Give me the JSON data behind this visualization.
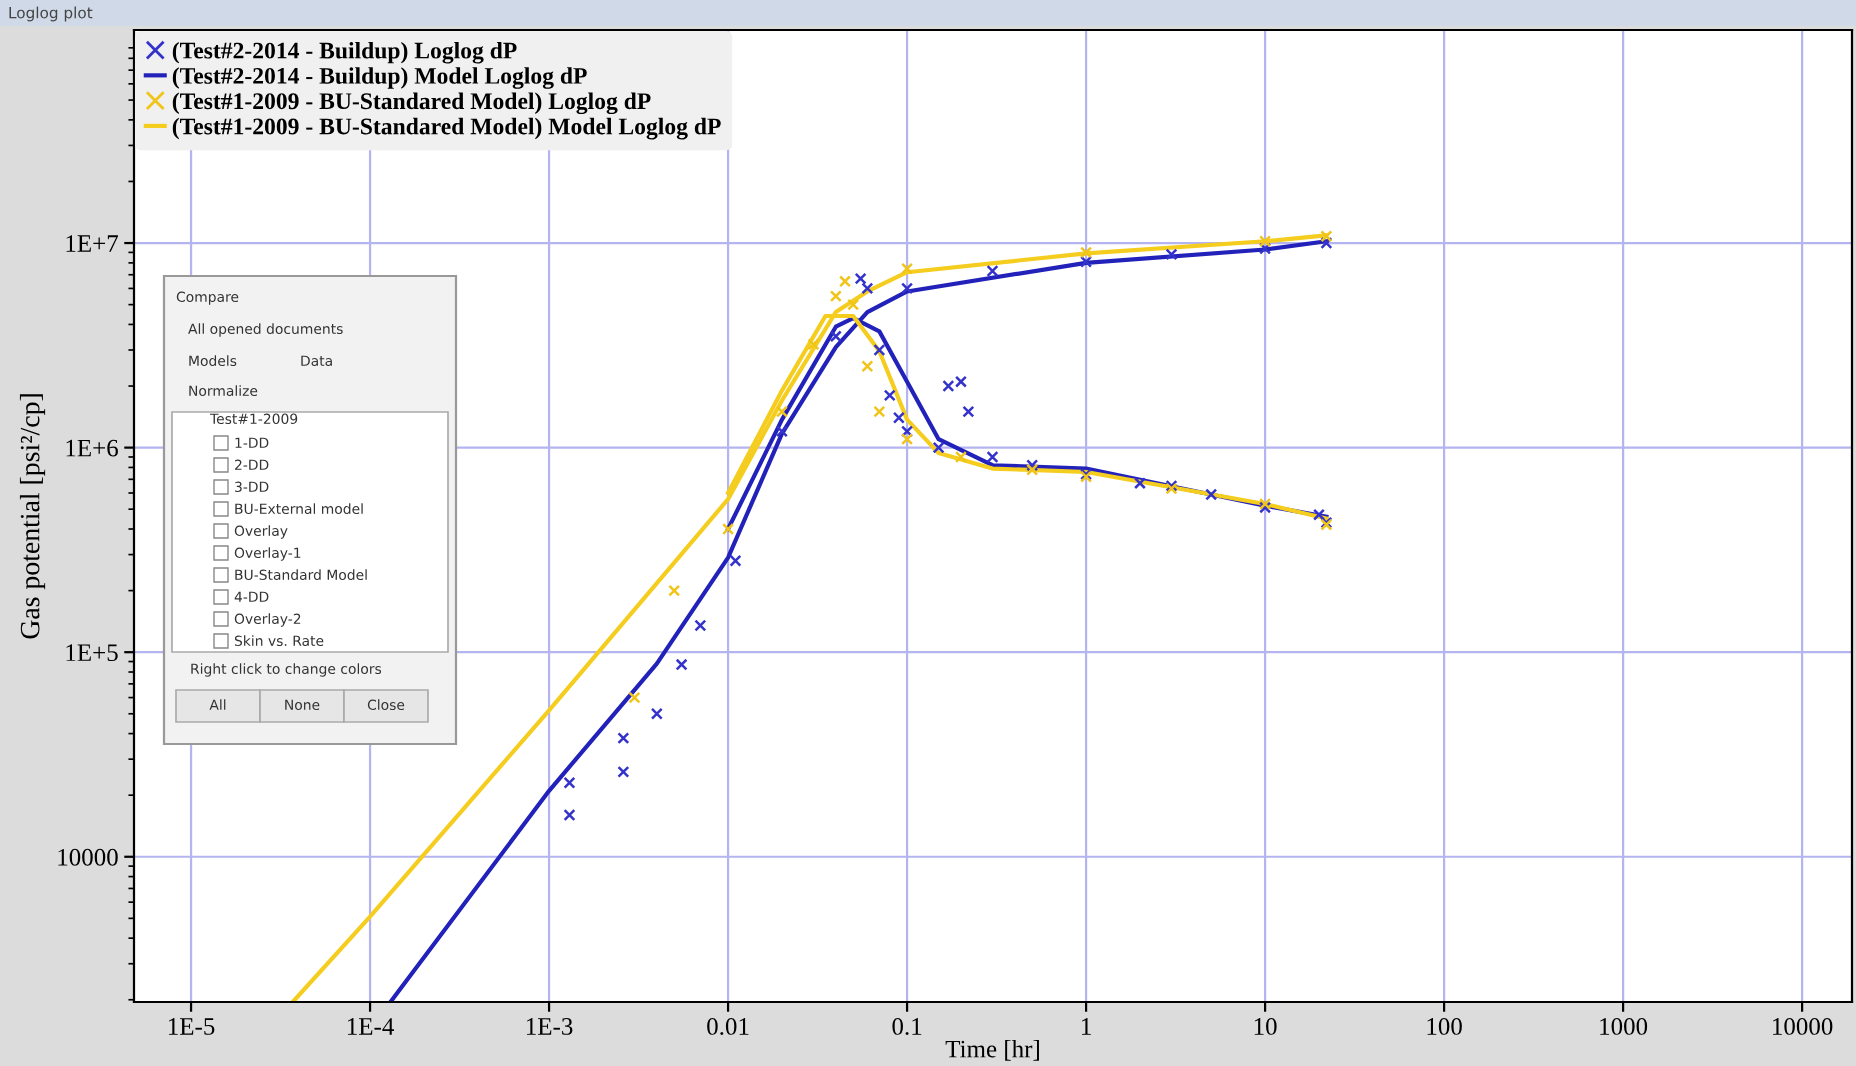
{
  "chart_data": {
    "type": "line",
    "xlabel": "Time [hr]",
    "ylabel": "Gas potential [psi²/cp]",
    "annotations": [
      "Loglog plot",
      "Compare",
      "All opened documents",
      "Models",
      "Data",
      "Normalize",
      "Test#1-2009",
      "1-DD",
      "2-DD",
      "3-DD",
      "BU-External model",
      "Overlay",
      "Overlay-1",
      "BU-Standard Model",
      "4-DD",
      "Overlay-2",
      "Skin vs. Rate",
      "Right click to change colors",
      "All",
      "None",
      "Close"
    ],
    "xlim": [
      4.8e-06,
      19000
    ],
    "ylim": [
      1950,
      110000000
    ],
    "log": "xy",
    "grid": true,
    "legend": "top left",
    "xticks": [
      {
        "value": 1e-05,
        "label": "1E-5"
      },
      {
        "value": 0.0001,
        "label": "1E-4"
      },
      {
        "value": 0.001,
        "label": "1E-3"
      },
      0.01,
      0.1,
      1,
      10,
      100,
      1000,
      10000
    ],
    "yticks": [
      10000,
      {
        "value": 100000,
        "label": "1E+5"
      },
      {
        "value": 1000000,
        "label": "1E+6"
      },
      {
        "value": 10000000,
        "label": "1E+7"
      }
    ],
    "series": [
      {
        "name": "(Test#2-2014 - Buildup) Loglog dP",
        "type": "scatter",
        "marker": "cross",
        "color": "#3333cc",
        "x": [
          0.0013,
          0.0013,
          0.0026,
          0.0026,
          0.004,
          0.0055,
          0.007,
          0.011,
          0.02,
          0.04,
          0.055,
          0.1,
          0.3,
          1,
          3,
          10,
          22,
          0.06,
          0.07,
          0.08,
          0.09,
          0.1,
          0.15,
          0.17,
          0.2,
          0.22,
          0.3,
          0.5,
          1,
          2,
          3,
          5,
          10,
          20,
          22
        ],
        "values": [
          16000,
          23000,
          26000,
          38000,
          50000,
          87000,
          135000,
          280000,
          1200000,
          3500000,
          6700000,
          6000000,
          7300000,
          8100000,
          8800000,
          9400000,
          10000000,
          6000000,
          3000000,
          1800000,
          1400000,
          1200000,
          1000000,
          2000000,
          2100000,
          1500000,
          900000,
          820000,
          740000,
          670000,
          650000,
          590000,
          510000,
          470000,
          430000
        ]
      },
      {
        "name": "(Test#2-2014 - Buildup) Model Loglog dP",
        "color": "#2222bb",
        "x": [
          0.00013,
          0.001,
          0.004,
          0.01,
          0.02,
          0.04,
          0.06,
          0.1,
          1,
          10,
          22
        ],
        "values": [
          1950,
          21000,
          88000,
          290000,
          1170000,
          3100000,
          4600000,
          5800000,
          8000000,
          9300000,
          10200000
        ]
      },
      {
        "color": "#2222bb",
        "x": [
          0.01,
          0.02,
          0.04,
          0.05,
          0.07,
          0.1,
          0.15,
          0.3,
          1,
          10,
          22
        ],
        "values": [
          400000,
          1370000,
          3900000,
          4300000,
          3700000,
          2100000,
          1100000,
          820000,
          790000,
          520000,
          460000
        ]
      },
      {
        "name": "(Test#1-2009 - BU-Standared Model) Loglog dP",
        "type": "scatter",
        "marker": "cross",
        "color": "#f0c419",
        "x": [
          0.003,
          0.005,
          0.01,
          0.02,
          0.03,
          0.04,
          0.045,
          0.06,
          0.07,
          0.1,
          0.2,
          0.5,
          1,
          3,
          10,
          22,
          0.05,
          0.1,
          1,
          10,
          22
        ],
        "values": [
          60000,
          200000,
          400000,
          1500000,
          3200000,
          5500000,
          6500000,
          2500000,
          1500000,
          1100000,
          900000,
          780000,
          720000,
          630000,
          530000,
          420000,
          5000000,
          7500000,
          9000000,
          10200000,
          10800000
        ]
      },
      {
        "name": "(Test#1-2009 - BU-Standared Model) Model Loglog dP",
        "color": "#f5cd1e",
        "x": [
          3.7e-05,
          0.0001,
          0.001,
          0.01,
          0.02,
          0.04,
          0.06,
          0.1,
          1,
          10,
          22
        ],
        "values": [
          1950,
          5100,
          52000,
          560000,
          1700000,
          4600000,
          5800000,
          7200000,
          8900000,
          10200000,
          10900000
        ]
      },
      {
        "color": "#f5cd1e",
        "x": [
          0.01,
          0.02,
          0.035,
          0.05,
          0.07,
          0.1,
          0.15,
          0.3,
          1,
          10,
          22
        ],
        "values": [
          600000,
          1900000,
          4400000,
          4400000,
          2960000,
          1370000,
          940000,
          790000,
          760000,
          530000,
          450000
        ]
      }
    ]
  }
}
